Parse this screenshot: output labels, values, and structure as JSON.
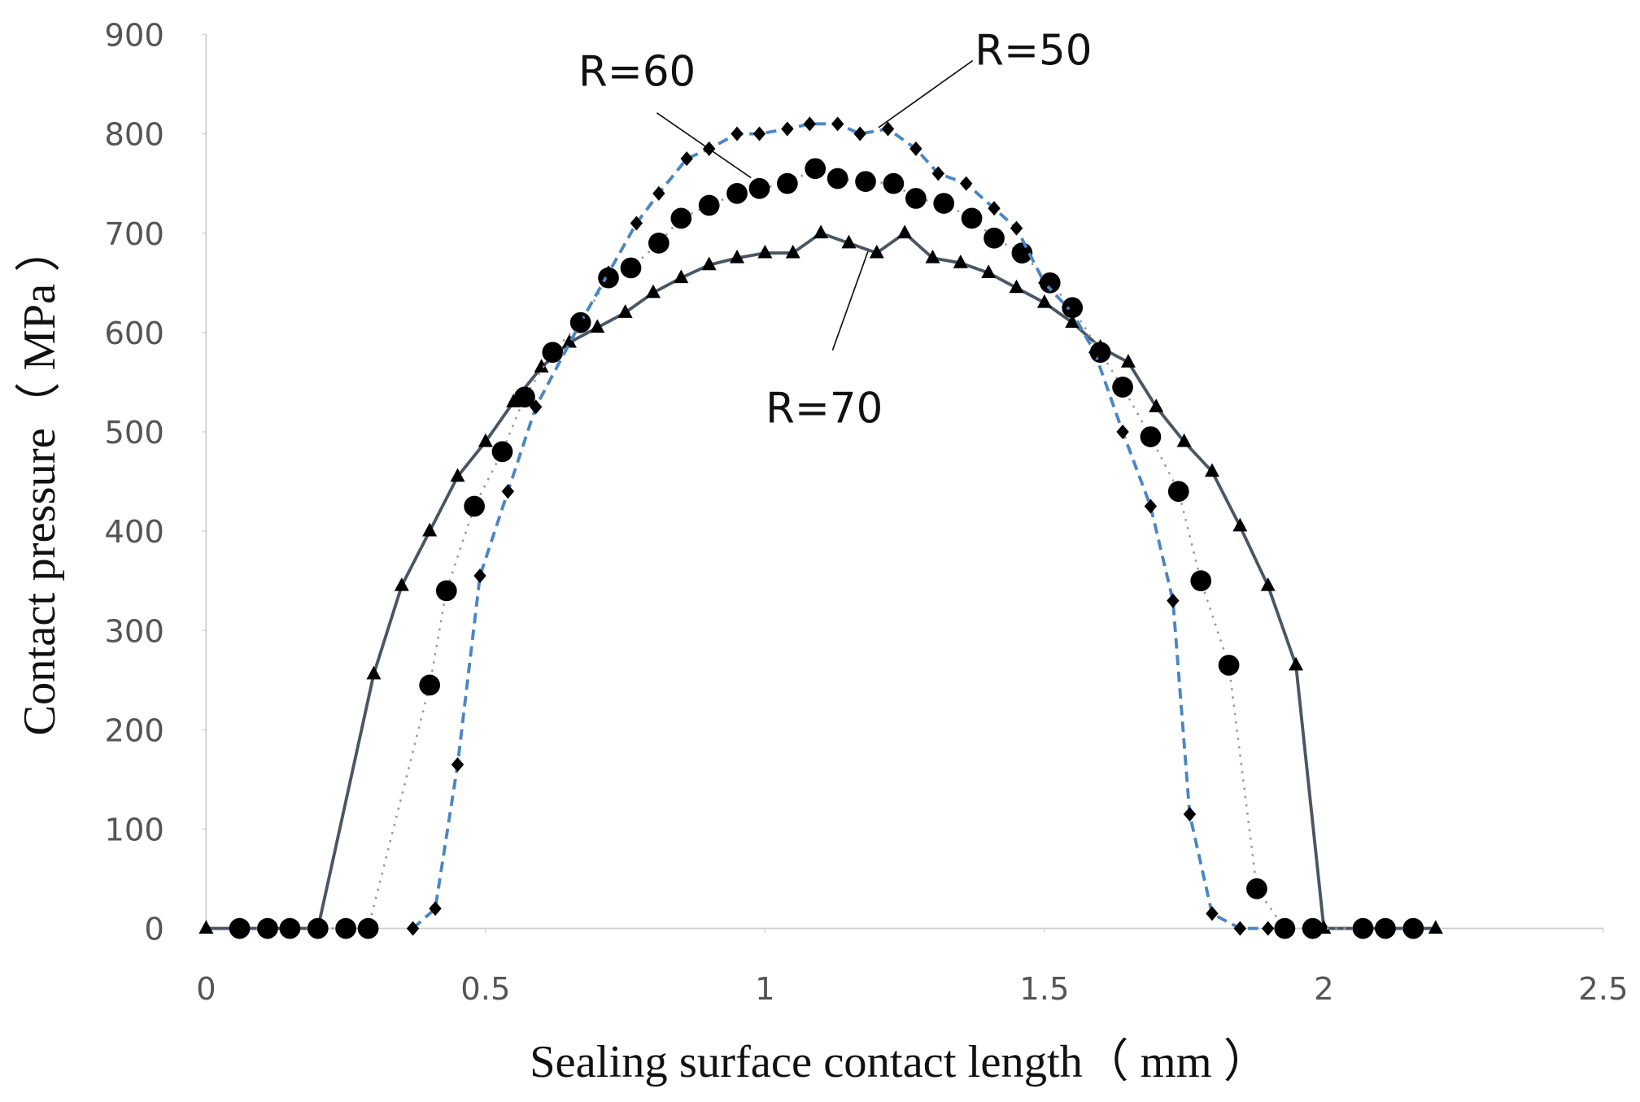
{
  "chart_data": {
    "type": "line",
    "x_label": "Sealing surface contact length（ mm ）",
    "y_label": "Contact pressure（ MPa ）",
    "xlim": [
      0,
      2.5
    ],
    "xticks": [
      0,
      0.5,
      1,
      1.5,
      2,
      2.5
    ],
    "ylim": [
      0,
      900
    ],
    "yticks": [
      0,
      100,
      200,
      300,
      400,
      500,
      600,
      700,
      800,
      900
    ],
    "grid": false,
    "annotations": [
      "R=60",
      "R=50",
      "R=70"
    ],
    "series": [
      {
        "name": "R=70",
        "color": "#4a5663",
        "dash": "solid",
        "marker": "triangle",
        "x": [
          0,
          0.2,
          0.3,
          0.35,
          0.4,
          0.45,
          0.5,
          0.55,
          0.6,
          0.65,
          0.7,
          0.75,
          0.8,
          0.85,
          0.9,
          0.95,
          1.0,
          1.05,
          1.1,
          1.15,
          1.2,
          1.25,
          1.3,
          1.35,
          1.4,
          1.45,
          1.5,
          1.55,
          1.6,
          1.65,
          1.7,
          1.75,
          1.8,
          1.85,
          1.9,
          1.95,
          2.0,
          2.2
        ],
        "values": [
          0,
          0,
          256,
          345,
          400,
          455,
          490,
          530,
          565,
          590,
          605,
          620,
          640,
          655,
          668,
          675,
          680,
          680,
          700,
          690,
          680,
          700,
          675,
          670,
          660,
          645,
          630,
          610,
          585,
          570,
          525,
          490,
          460,
          405,
          345,
          265,
          0,
          0
        ]
      },
      {
        "name": "R=60",
        "color": "#999999",
        "dash": "dotted",
        "marker": "circle",
        "x": [
          0.06,
          0.11,
          0.15,
          0.2,
          0.25,
          0.29,
          0.4,
          0.43,
          0.48,
          0.53,
          0.57,
          0.62,
          0.67,
          0.72,
          0.76,
          0.81,
          0.85,
          0.9,
          0.95,
          0.99,
          1.04,
          1.09,
          1.13,
          1.18,
          1.23,
          1.27,
          1.32,
          1.37,
          1.41,
          1.46,
          1.51,
          1.55,
          1.6,
          1.64,
          1.69,
          1.74,
          1.78,
          1.83,
          1.88,
          1.93,
          1.98,
          2.07,
          2.11,
          2.16
        ],
        "values": [
          0,
          0,
          0,
          0,
          0,
          0,
          245,
          340,
          425,
          480,
          535,
          580,
          610,
          655,
          665,
          690,
          715,
          728,
          740,
          745,
          750,
          765,
          755,
          752,
          750,
          735,
          730,
          715,
          695,
          680,
          650,
          625,
          580,
          545,
          495,
          440,
          350,
          265,
          40,
          0,
          0,
          0,
          0,
          0
        ]
      },
      {
        "name": "R=50",
        "color": "#4a86c5",
        "dash": "dashed",
        "marker": "diamond",
        "x": [
          0.37,
          0.41,
          0.45,
          0.49,
          0.54,
          0.59,
          0.67,
          0.72,
          0.77,
          0.81,
          0.86,
          0.9,
          0.95,
          0.99,
          1.04,
          1.08,
          1.13,
          1.17,
          1.22,
          1.27,
          1.31,
          1.36,
          1.41,
          1.45,
          1.5,
          1.55,
          1.59,
          1.64,
          1.69,
          1.73,
          1.76,
          1.8,
          1.85,
          1.9
        ],
        "values": [
          0,
          20,
          165,
          355,
          440,
          525,
          610,
          660,
          710,
          740,
          775,
          785,
          800,
          800,
          805,
          810,
          810,
          800,
          805,
          785,
          760,
          750,
          725,
          705,
          650,
          620,
          580,
          500,
          425,
          330,
          115,
          15,
          0,
          0
        ]
      }
    ]
  }
}
